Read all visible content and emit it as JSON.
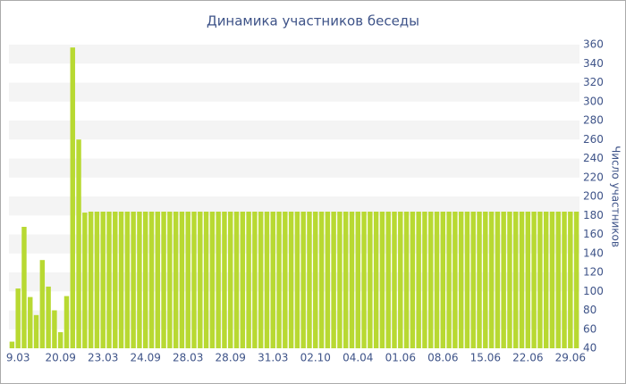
{
  "chart_data": {
    "type": "bar",
    "title": "Динамика участников беседы",
    "y_axis_label": "Число участников",
    "categories": [
      null,
      "9.03",
      null,
      null,
      null,
      null,
      null,
      null,
      "20.09",
      null,
      null,
      null,
      null,
      null,
      null,
      "23.03",
      null,
      null,
      null,
      null,
      null,
      null,
      "24.09",
      null,
      null,
      null,
      null,
      null,
      null,
      "28.03",
      null,
      null,
      null,
      null,
      null,
      null,
      "28.09",
      null,
      null,
      null,
      null,
      null,
      null,
      "31.03",
      null,
      null,
      null,
      null,
      null,
      null,
      "02.10",
      null,
      null,
      null,
      null,
      null,
      null,
      "04.04",
      null,
      null,
      null,
      null,
      null,
      null,
      "01.06",
      null,
      null,
      null,
      null,
      null,
      null,
      "08.06",
      null,
      null,
      null,
      null,
      null,
      null,
      "15.06",
      null,
      null,
      null,
      null,
      null,
      null,
      "22.06",
      null,
      null,
      null,
      null,
      null,
      null,
      "29.06",
      null
    ],
    "values": [
      47,
      103,
      168,
      94,
      75,
      133,
      105,
      80,
      57,
      95,
      357,
      260,
      183,
      184,
      184,
      184,
      184,
      184,
      184,
      184,
      184,
      184,
      184,
      184,
      184,
      184,
      184,
      184,
      184,
      184,
      184,
      184,
      184,
      184,
      184,
      184,
      184,
      184,
      184,
      184,
      184,
      184,
      184,
      184,
      184,
      184,
      184,
      184,
      184,
      184,
      184,
      184,
      184,
      184,
      184,
      184,
      184,
      184,
      184,
      184,
      184,
      184,
      184,
      184,
      184,
      184,
      184,
      184,
      184,
      184,
      184,
      184,
      184,
      184,
      184,
      184,
      184,
      184,
      184,
      184,
      184,
      184,
      184,
      184,
      184,
      184,
      184,
      184,
      184,
      184,
      184,
      184,
      184,
      184
    ],
    "color": "#b8d932",
    "ylim": [
      40,
      360
    ],
    "yticks": [
      40,
      60,
      80,
      100,
      120,
      140,
      160,
      180,
      200,
      220,
      240,
      260,
      280,
      300,
      320,
      340,
      360
    ],
    "grid": true
  }
}
